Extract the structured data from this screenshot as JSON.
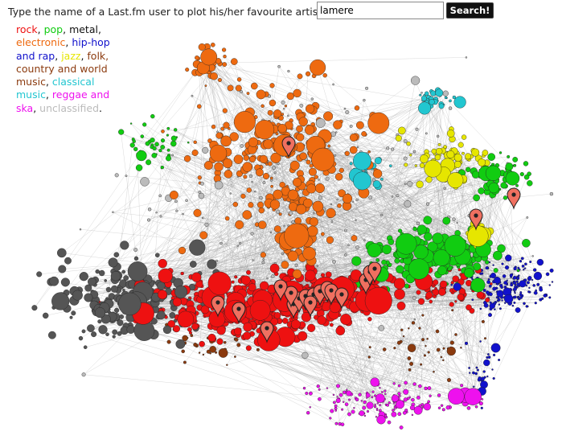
{
  "prompt": "Type the name of a Last.fm user to plot his/her favourite artists:",
  "search": {
    "value": "lamere",
    "button_label": "Search!"
  },
  "legend": {
    "text_color": "#111111",
    "entries": [
      {
        "label": "rock",
        "color": "#ee1111",
        "sep": ", "
      },
      {
        "label": "pop",
        "color": "#11cc11",
        "sep": ", "
      },
      {
        "label": "metal",
        "color": "#111111",
        "sep": ", "
      },
      {
        "label": "electronic",
        "color": "#ee6a10",
        "sep": ", "
      },
      {
        "label": "hip-hop and rap",
        "color": "#1111cc",
        "sep": ", "
      },
      {
        "label": "jazz",
        "color": "#e6e600",
        "sep": ", "
      },
      {
        "label": "folk, country and world music",
        "color": "#8b3a0e",
        "sep": ", "
      },
      {
        "label": "classical music",
        "color": "#22c6d0",
        "sep": ", "
      },
      {
        "label": "reggae and ska",
        "color": "#ee11ee",
        "sep": ", "
      },
      {
        "label": "unclassified",
        "color": "#bbbbbb",
        "sep": "."
      }
    ]
  },
  "map": {
    "edge_color": "#9a9a9a",
    "marker_color": "#f07060",
    "marker_count": 20
  }
}
